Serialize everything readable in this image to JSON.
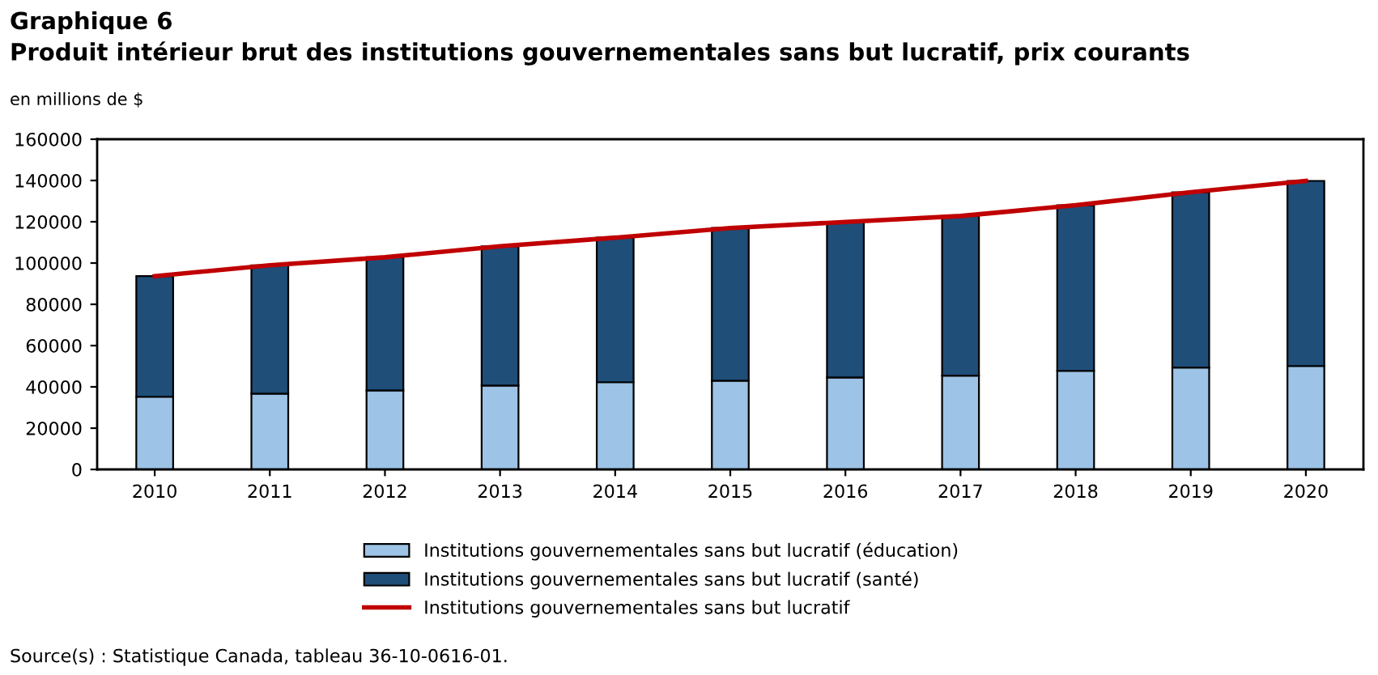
{
  "chart_data": {
    "type": "bar",
    "stacked": true,
    "title": "Graphique 6",
    "subtitle": "Produit intérieur brut des institutions gouvernementales sans but lucratif, prix courants",
    "ylabel": "en millions de $",
    "categories": [
      "2010",
      "2011",
      "2012",
      "2013",
      "2014",
      "2015",
      "2016",
      "2017",
      "2018",
      "2019",
      "2020"
    ],
    "series": [
      {
        "name": "Institutions gouvernementales sans but lucratif (éducation)",
        "color": "#9dc3e6",
        "values": [
          35200,
          36750,
          38300,
          40650,
          42250,
          43000,
          44600,
          45400,
          47750,
          49350,
          50100
        ]
      },
      {
        "name": "Institutions gouvernementales sans but lucratif (santé)",
        "color": "#1f4e79",
        "values": [
          58450,
          62150,
          64500,
          67450,
          70050,
          74000,
          75300,
          77400,
          80250,
          84950,
          89700
        ]
      },
      {
        "name": "Institutions gouvernementales sans but lucratif",
        "type": "line",
        "color": "#c00000",
        "values": [
          93650,
          98900,
          102800,
          108100,
          112300,
          117000,
          119900,
          122800,
          128000,
          134300,
          139800
        ]
      }
    ],
    "ylim": [
      0,
      160000
    ],
    "yticks": [
      0,
      20000,
      40000,
      60000,
      80000,
      100000,
      120000,
      140000,
      160000
    ],
    "grid": false,
    "legend": "bottom",
    "annotations": [
      "Source(s) : Statistique Canada, tableau 36-10-0616-01."
    ]
  }
}
